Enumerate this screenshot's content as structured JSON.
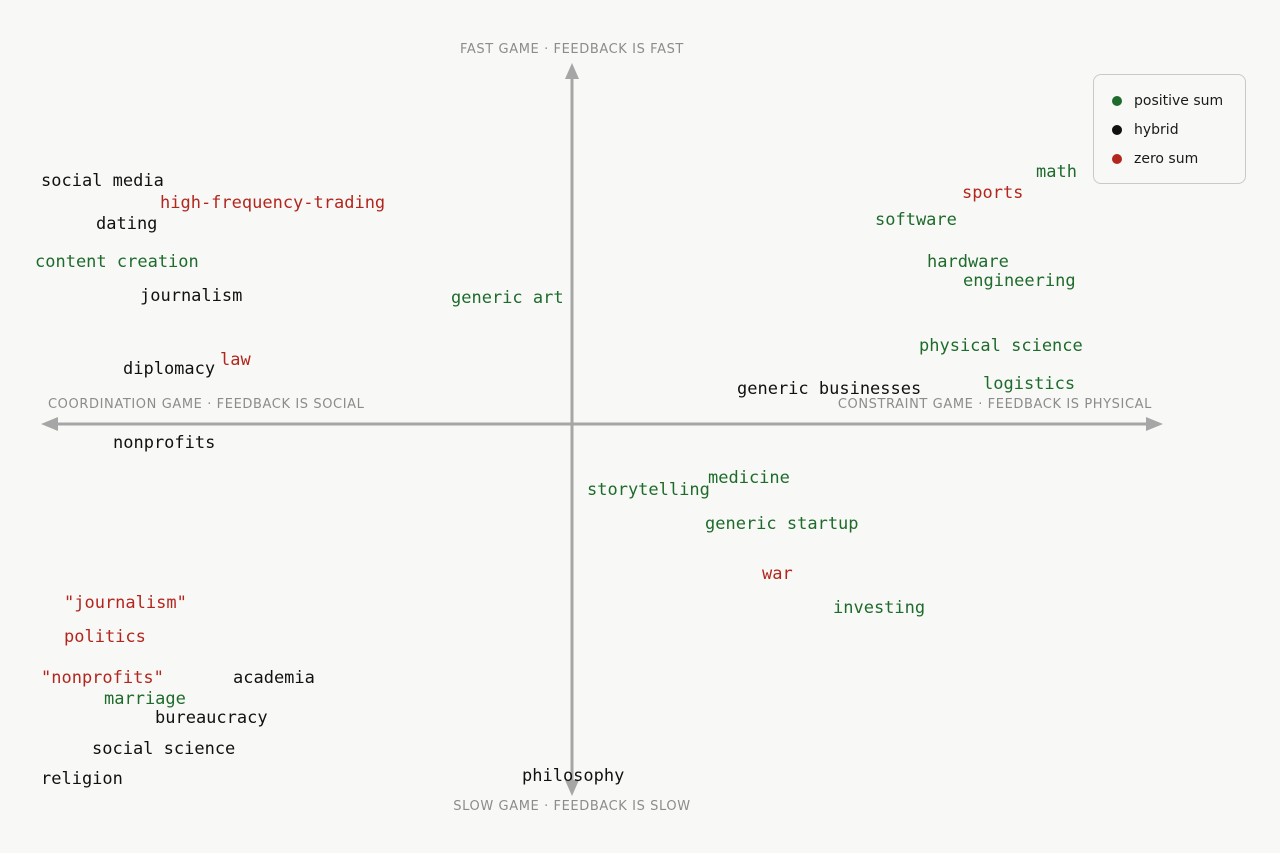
{
  "colors": {
    "positive": "#1e6b2c",
    "hybrid": "#111111",
    "zero": "#b3261e",
    "axis": "#a6a6a6"
  },
  "axes": {
    "top": "FAST GAME · FEEDBACK IS FAST",
    "bottom": "SLOW GAME · FEEDBACK IS SLOW",
    "left": "COORDINATION GAME · FEEDBACK IS SOCIAL",
    "right": "CONSTRAINT GAME · FEEDBACK IS PHYSICAL"
  },
  "legend": [
    {
      "label": "positive sum",
      "kind": "positive"
    },
    {
      "label": "hybrid",
      "kind": "hybrid"
    },
    {
      "label": "zero sum",
      "kind": "zero"
    }
  ],
  "terms": [
    {
      "text": "social media",
      "kind": "hybrid"
    },
    {
      "text": "high-frequency-trading",
      "kind": "zero"
    },
    {
      "text": "dating",
      "kind": "hybrid"
    },
    {
      "text": "content creation",
      "kind": "positive"
    },
    {
      "text": "journalism",
      "kind": "hybrid"
    },
    {
      "text": "generic art",
      "kind": "positive"
    },
    {
      "text": "law",
      "kind": "zero"
    },
    {
      "text": "diplomacy",
      "kind": "hybrid"
    },
    {
      "text": "nonprofits",
      "kind": "hybrid"
    },
    {
      "text": "math",
      "kind": "positive"
    },
    {
      "text": "sports",
      "kind": "zero"
    },
    {
      "text": "software",
      "kind": "positive"
    },
    {
      "text": "hardware",
      "kind": "positive"
    },
    {
      "text": "engineering",
      "kind": "positive"
    },
    {
      "text": "physical science",
      "kind": "positive"
    },
    {
      "text": "generic businesses",
      "kind": "hybrid"
    },
    {
      "text": "logistics",
      "kind": "positive"
    },
    {
      "text": "medicine",
      "kind": "positive"
    },
    {
      "text": "storytelling",
      "kind": "positive"
    },
    {
      "text": "generic startup",
      "kind": "positive"
    },
    {
      "text": "war",
      "kind": "zero"
    },
    {
      "text": "investing",
      "kind": "positive"
    },
    {
      "text": "\"journalism\"",
      "kind": "zero"
    },
    {
      "text": "politics",
      "kind": "zero"
    },
    {
      "text": "\"nonprofits\"",
      "kind": "zero"
    },
    {
      "text": "academia",
      "kind": "hybrid"
    },
    {
      "text": "marriage",
      "kind": "positive"
    },
    {
      "text": "bureaucracy",
      "kind": "hybrid"
    },
    {
      "text": "social science",
      "kind": "hybrid"
    },
    {
      "text": "religion",
      "kind": "hybrid"
    },
    {
      "text": "philosophy",
      "kind": "hybrid"
    }
  ]
}
